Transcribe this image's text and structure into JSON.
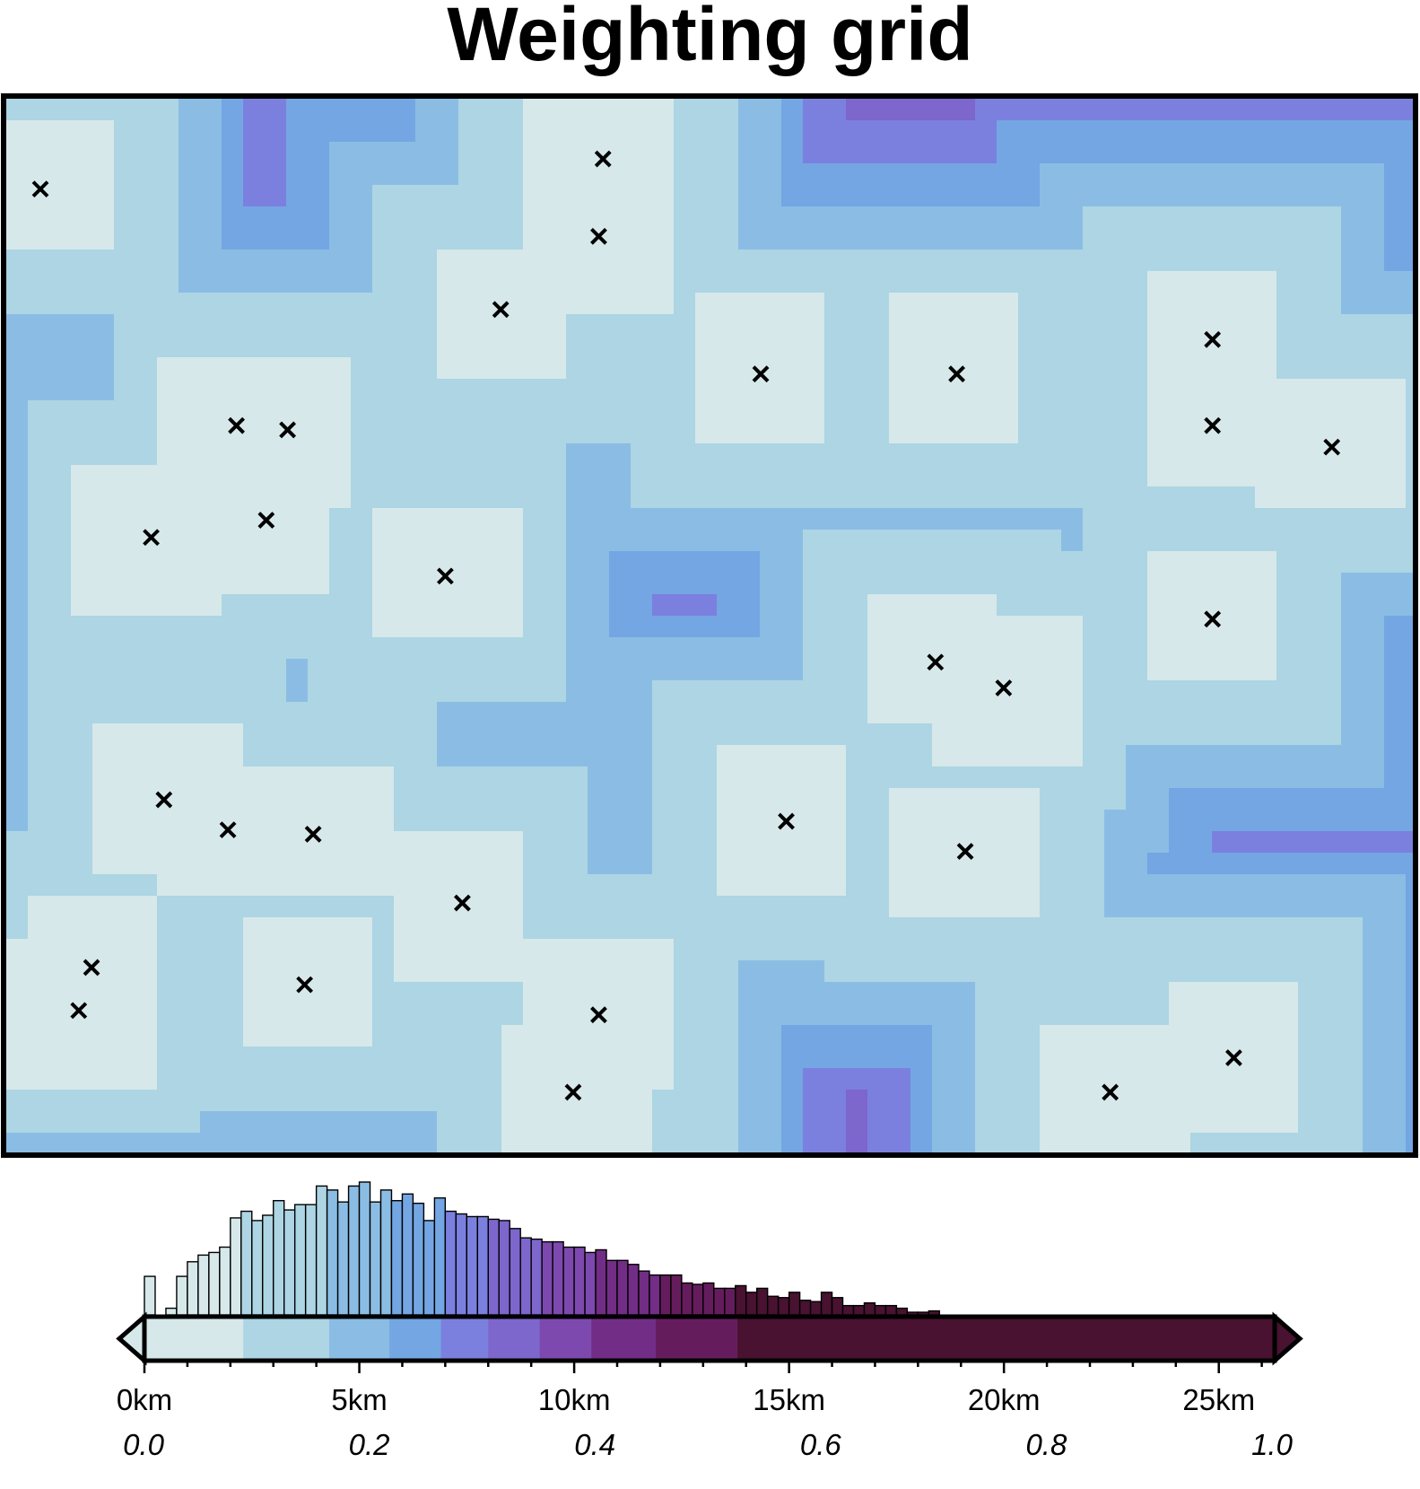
{
  "title": "Weighting grid",
  "colors": {
    "frame": "#000000",
    "marker": "#000000",
    "palette": [
      "#d6e8ea",
      "#add5e3",
      "#8bbde4",
      "#74a6e3",
      "#7b80df",
      "#7d66cc",
      "#7d49ae",
      "#722d86",
      "#651c5d",
      "#481230"
    ]
  },
  "chart_data": {
    "type": "heatmap",
    "title": "Weighting grid",
    "extent_km": {
      "x": [
        0,
        33
      ],
      "y": [
        0,
        24.5
      ]
    },
    "colorbar": {
      "range_km": [
        0,
        26.3
      ],
      "triangles": [
        "left",
        "right"
      ],
      "color_stops_km": [
        0,
        2.3,
        4.3,
        5.7,
        6.9,
        8.0,
        9.2,
        10.4,
        11.9,
        13.8,
        26.3
      ],
      "km_tick_labels": [
        "0km",
        "5km",
        "10km",
        "15km",
        "20km",
        "25km"
      ],
      "km_ticks": [
        0,
        5,
        10,
        15,
        20,
        25
      ],
      "weight_tick_labels": [
        "0.0",
        "0.2",
        "0.4",
        "0.6",
        "0.8",
        "1.0"
      ],
      "weight_ticks": [
        0.0,
        0.2,
        0.4,
        0.6,
        0.8,
        1.0
      ]
    },
    "histogram": {
      "bin_width_km": 0.25,
      "first_bin_km": 0,
      "relative_heights": [
        0.29,
        0,
        0.05,
        0.29,
        0.4,
        0.45,
        0.47,
        0.51,
        0.73,
        0.78,
        0.71,
        0.75,
        0.86,
        0.79,
        0.83,
        0.83,
        0.97,
        0.94,
        0.85,
        0.97,
        1.0,
        0.85,
        0.94,
        0.86,
        0.91,
        0.84,
        0.71,
        0.88,
        0.78,
        0.76,
        0.74,
        0.74,
        0.72,
        0.71,
        0.65,
        0.58,
        0.57,
        0.55,
        0.55,
        0.51,
        0.51,
        0.47,
        0.49,
        0.41,
        0.41,
        0.38,
        0.33,
        0.3,
        0.3,
        0.3,
        0.24,
        0.23,
        0.24,
        0.2,
        0.2,
        0.22,
        0.17,
        0.2,
        0.14,
        0.13,
        0.17,
        0.11,
        0.1,
        0.17,
        0.13,
        0.07,
        0.07,
        0.09,
        0.07,
        0.07,
        0.05,
        0.02,
        0.02,
        0.03
      ]
    },
    "points_km": [
      [
        0.8,
        22.4
      ],
      [
        14,
        23.1
      ],
      [
        13.9,
        21.3
      ],
      [
        11.6,
        19.6
      ],
      [
        17.7,
        18.1
      ],
      [
        22.3,
        18.1
      ],
      [
        28.3,
        18.9
      ],
      [
        28.3,
        16.9
      ],
      [
        31.1,
        16.4
      ],
      [
        5.4,
        16.9
      ],
      [
        6.6,
        16.8
      ],
      [
        3.4,
        14.3
      ],
      [
        6.1,
        14.7
      ],
      [
        10.3,
        13.4
      ],
      [
        28.3,
        12.4
      ],
      [
        21.8,
        11.4
      ],
      [
        23.4,
        10.8
      ],
      [
        3.7,
        8.2
      ],
      [
        5.2,
        7.5
      ],
      [
        7.2,
        7.4
      ],
      [
        18.3,
        7.7
      ],
      [
        22.5,
        7.0
      ],
      [
        10.7,
        5.8
      ],
      [
        2.0,
        4.3
      ],
      [
        1.7,
        3.3
      ],
      [
        7.0,
        3.9
      ],
      [
        13.9,
        3.2
      ],
      [
        13.3,
        1.4
      ],
      [
        25.9,
        1.4
      ],
      [
        28.8,
        2.2
      ]
    ]
  }
}
